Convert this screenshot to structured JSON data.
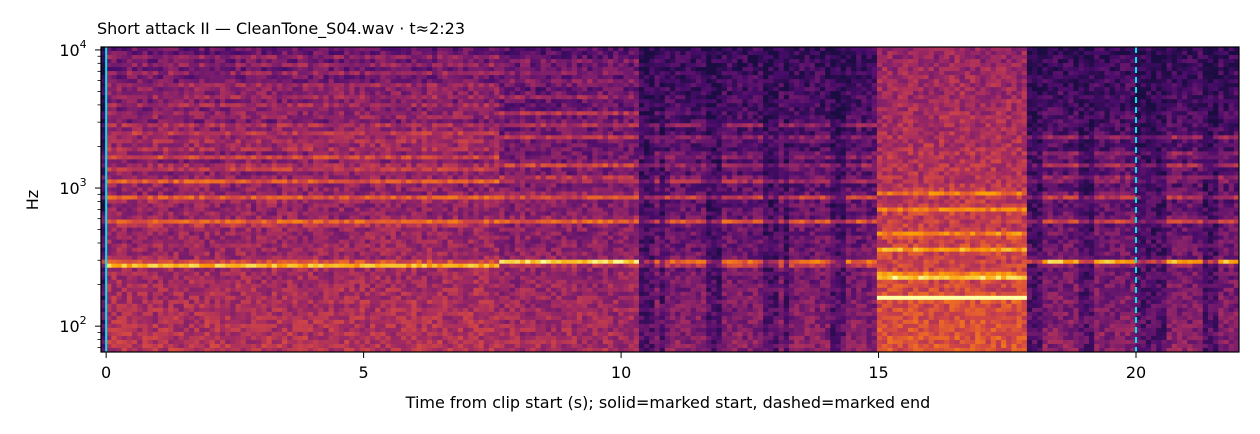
{
  "chart_data": {
    "type": "heatmap",
    "subtype": "spectrogram",
    "title": "Short attack II  —  CleanTone_S04.wav · t≈2:23",
    "xlabel": "Time from clip start (s); solid=marked start, dashed=marked end",
    "ylabel": "Hz",
    "x_scale": "linear",
    "y_scale": "log",
    "xlim": [
      -0.1,
      22.0
    ],
    "ylim": [
      65,
      10500
    ],
    "x_ticks": [
      0,
      5,
      10,
      15,
      20
    ],
    "x_tick_labels": [
      "0",
      "5",
      "10",
      "15",
      "20"
    ],
    "y_ticks": [
      {
        "value": 100,
        "base": "10",
        "exp": "2"
      },
      {
        "value": 1000,
        "base": "10",
        "exp": "3"
      },
      {
        "value": 10000,
        "base": "10",
        "exp": "4"
      }
    ],
    "colormap": "magma",
    "colormap_stops": [
      "#1b0c41",
      "#4a0c6b",
      "#781c6d",
      "#a52c60",
      "#cf4446",
      "#ed6925",
      "#fb9b06",
      "#f7d13d",
      "#fcffa4"
    ],
    "segments": [
      {
        "start": 0.0,
        "end": 7.6,
        "f0": 280,
        "partials": [
          280,
          560,
          840,
          1120,
          1400,
          1680,
          1960,
          2240,
          2520,
          2800,
          3360,
          3920,
          4480,
          5040,
          5600,
          6720,
          7840,
          8960
        ],
        "base_level": 0.42
      },
      {
        "start": 7.6,
        "end": 10.3,
        "f0": 290,
        "partials": [
          290,
          580,
          870,
          1160,
          1450,
          2320,
          2900,
          3480,
          4640,
          5800,
          6960,
          8120
        ],
        "base_level": 0.38
      },
      {
        "start": 10.3,
        "end": 15.0,
        "f0": 285,
        "partials": [
          285,
          570,
          855,
          1140,
          1425,
          1710,
          2280,
          2850
        ],
        "base_level": 0.3,
        "pulsed": true
      },
      {
        "start": 15.0,
        "end": 17.9,
        "f0": 230,
        "partials": [
          160,
          230,
          360,
          460,
          690,
          920
        ],
        "base_level": 0.55
      },
      {
        "start": 17.9,
        "end": 22.0,
        "f0": 290,
        "partials": [
          290,
          580,
          870,
          1160,
          1450,
          1740,
          2320
        ],
        "base_level": 0.3,
        "pulsed": true
      }
    ],
    "markers": [
      {
        "name": "marked start",
        "x": 0.0,
        "style": "solid",
        "color": "#00e5ee"
      },
      {
        "name": "marked end",
        "x": 20.0,
        "style": "dashed",
        "color": "#00e5ee"
      }
    ]
  }
}
